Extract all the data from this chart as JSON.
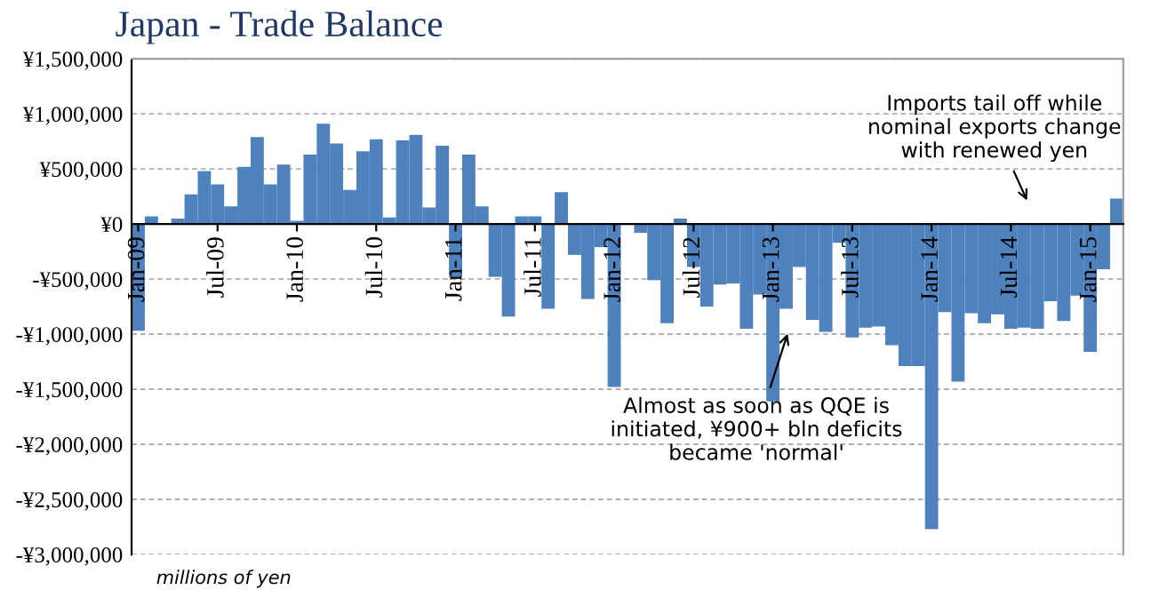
{
  "chart_data": {
    "type": "bar",
    "title": "Japan - Trade Balance",
    "color": "#4f81bd",
    "categories": [
      "Jan-09",
      null,
      null,
      null,
      null,
      null,
      "Jul-09",
      null,
      null,
      null,
      null,
      null,
      "Jan-10",
      null,
      null,
      null,
      null,
      null,
      "Jul-10",
      null,
      null,
      null,
      null,
      null,
      "Jan-11",
      null,
      null,
      null,
      null,
      null,
      "Jul-11",
      null,
      null,
      null,
      null,
      null,
      "Jan-12",
      null,
      null,
      null,
      null,
      null,
      "Jul-12",
      null,
      null,
      null,
      null,
      null,
      "Jan-13",
      null,
      null,
      null,
      null,
      null,
      "Jul-13",
      null,
      null,
      null,
      null,
      null,
      "Jan-14",
      null,
      null,
      null,
      null,
      null,
      "Jul-14",
      null,
      null,
      null,
      null,
      null,
      "Jan-15",
      null,
      null
    ],
    "values": [
      -970000,
      70000,
      null,
      50000,
      270000,
      480000,
      360000,
      160000,
      520000,
      790000,
      360000,
      540000,
      30000,
      630000,
      910000,
      730000,
      310000,
      660000,
      770000,
      60000,
      760000,
      810000,
      150000,
      710000,
      -480000,
      630000,
      160000,
      -480000,
      -840000,
      70000,
      70000,
      -770000,
      290000,
      -280000,
      -680000,
      -210000,
      -1480000,
      null,
      -80000,
      -510000,
      -900000,
      50000,
      -390000,
      -750000,
      -550000,
      -540000,
      -950000,
      -640000,
      -1610000,
      -770000,
      -390000,
      -870000,
      -980000,
      -170000,
      -1030000,
      -940000,
      -930000,
      -1100000,
      -1290000,
      -1290000,
      -2770000,
      -800000,
      -1430000,
      -810000,
      -900000,
      -820000,
      -950000,
      -940000,
      -950000,
      -700000,
      -880000,
      -650000,
      -1160000,
      -410000,
      230000
    ],
    "ylim": [
      -3000000,
      1500000
    ],
    "yticks": [
      {
        "value": -3000000,
        "label": "-¥3,000,000"
      },
      {
        "value": -2500000,
        "label": "-¥2,500,000"
      },
      {
        "value": -2000000,
        "label": "-¥2,000,000"
      },
      {
        "value": -1500000,
        "label": "-¥1,500,000"
      },
      {
        "value": -1000000,
        "label": "-¥1,000,000"
      },
      {
        "value": -500000,
        "label": "-¥500,000"
      },
      {
        "value": 0,
        "label": "¥0"
      },
      {
        "value": 500000,
        "label": "¥500,000"
      },
      {
        "value": 1000000,
        "label": "¥1,000,000"
      },
      {
        "value": 1500000,
        "label": "¥1,500,000"
      }
    ],
    "grid": "y",
    "annotations": [
      "Almost as soon as QQE is\ninitiated, ¥900+ bln deficits\nbecame 'normal'",
      "Imports tail off while\nnominal exports change\nwith renewed yen",
      "millions of yen"
    ]
  }
}
